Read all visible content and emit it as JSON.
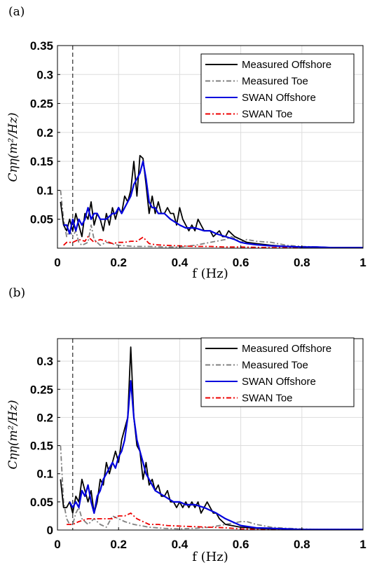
{
  "chart_data": [
    {
      "panel": "(a)",
      "type": "line",
      "xlabel": "f (Hz)",
      "ylabel": "Cηη(m²/Hz)",
      "xlim": [
        0,
        1
      ],
      "ylim": [
        0,
        0.35
      ],
      "xticks": [
        0,
        0.2,
        0.4,
        0.6,
        0.8,
        1
      ],
      "yticks": [
        0.05,
        0.1,
        0.15,
        0.2,
        0.25,
        0.3,
        0.35
      ],
      "grid": true,
      "vline": 0.05,
      "legend_position": "top-right",
      "series": [
        {
          "name": "Measured Offshore",
          "color": "#000000",
          "style": "solid",
          "x": [
            0.01,
            0.02,
            0.03,
            0.04,
            0.05,
            0.06,
            0.07,
            0.08,
            0.09,
            0.1,
            0.11,
            0.12,
            0.13,
            0.14,
            0.15,
            0.16,
            0.17,
            0.18,
            0.19,
            0.2,
            0.21,
            0.22,
            0.23,
            0.24,
            0.25,
            0.26,
            0.27,
            0.28,
            0.29,
            0.3,
            0.31,
            0.32,
            0.33,
            0.34,
            0.35,
            0.36,
            0.37,
            0.38,
            0.39,
            0.4,
            0.41,
            0.42,
            0.43,
            0.44,
            0.45,
            0.46,
            0.47,
            0.48,
            0.49,
            0.5,
            0.51,
            0.52,
            0.53,
            0.54,
            0.55,
            0.56,
            0.57,
            0.58,
            0.6,
            0.62,
            0.65,
            0.7,
            0.75,
            0.8,
            0.85,
            0.9,
            0.95,
            1.0
          ],
          "y": [
            0.08,
            0.04,
            0.03,
            0.05,
            0.03,
            0.06,
            0.04,
            0.02,
            0.06,
            0.05,
            0.08,
            0.04,
            0.06,
            0.05,
            0.03,
            0.06,
            0.04,
            0.07,
            0.05,
            0.07,
            0.06,
            0.09,
            0.08,
            0.1,
            0.15,
            0.09,
            0.16,
            0.155,
            0.11,
            0.06,
            0.09,
            0.06,
            0.08,
            0.06,
            0.06,
            0.07,
            0.06,
            0.06,
            0.04,
            0.07,
            0.05,
            0.04,
            0.03,
            0.04,
            0.03,
            0.05,
            0.04,
            0.03,
            0.03,
            0.03,
            0.02,
            0.025,
            0.03,
            0.02,
            0.02,
            0.03,
            0.025,
            0.02,
            0.015,
            0.01,
            0.008,
            0.005,
            0.003,
            0.002,
            0.002,
            0.001,
            0.001,
            0.001
          ]
        },
        {
          "name": "Measured Toe",
          "color": "#808080",
          "style": "dashdot",
          "x": [
            0.01,
            0.02,
            0.03,
            0.04,
            0.05,
            0.06,
            0.07,
            0.08,
            0.1,
            0.11,
            0.12,
            0.14,
            0.16,
            0.2,
            0.25,
            0.3,
            0.35,
            0.4,
            0.45,
            0.5,
            0.55,
            0.57,
            0.6,
            0.62,
            0.65,
            0.7,
            0.75,
            0.8,
            0.85,
            0.9,
            0.95,
            1.0
          ],
          "y": [
            0.1,
            0.05,
            0.02,
            0.03,
            0.02,
            0.03,
            0.01,
            0.005,
            0.01,
            0.04,
            0.015,
            0.005,
            0.01,
            0.005,
            0.003,
            0.003,
            0.002,
            0.002,
            0.005,
            0.01,
            0.015,
            0.02,
            0.01,
            0.015,
            0.012,
            0.01,
            0.005,
            0.003,
            0.002,
            0.001,
            0.001,
            0.001
          ]
        },
        {
          "name": "SWAN Offshore",
          "color": "#0000dd",
          "style": "solid",
          "x": [
            0.02,
            0.03,
            0.04,
            0.05,
            0.06,
            0.07,
            0.08,
            0.09,
            0.1,
            0.11,
            0.12,
            0.13,
            0.14,
            0.15,
            0.16,
            0.17,
            0.18,
            0.19,
            0.2,
            0.21,
            0.22,
            0.23,
            0.24,
            0.25,
            0.26,
            0.27,
            0.28,
            0.29,
            0.3,
            0.31,
            0.32,
            0.33,
            0.35,
            0.37,
            0.4,
            0.42,
            0.45,
            0.48,
            0.5,
            0.52,
            0.55,
            0.58,
            0.6,
            0.62,
            0.65,
            0.7,
            0.75,
            0.8,
            0.85,
            0.9,
            0.95,
            1.0
          ],
          "y": [
            0.04,
            0.04,
            0.025,
            0.05,
            0.03,
            0.05,
            0.04,
            0.05,
            0.07,
            0.05,
            0.06,
            0.06,
            0.05,
            0.05,
            0.05,
            0.055,
            0.06,
            0.06,
            0.07,
            0.06,
            0.07,
            0.08,
            0.09,
            0.11,
            0.12,
            0.13,
            0.15,
            0.12,
            0.08,
            0.07,
            0.07,
            0.06,
            0.06,
            0.05,
            0.04,
            0.035,
            0.035,
            0.03,
            0.03,
            0.025,
            0.02,
            0.015,
            0.01,
            0.008,
            0.006,
            0.004,
            0.003,
            0.002,
            0.002,
            0.001,
            0.001,
            0.001
          ]
        },
        {
          "name": "SWAN Toe",
          "color": "#ee0000",
          "style": "dashdot",
          "x": [
            0.02,
            0.03,
            0.05,
            0.07,
            0.09,
            0.1,
            0.12,
            0.14,
            0.16,
            0.18,
            0.2,
            0.22,
            0.24,
            0.26,
            0.28,
            0.3,
            0.32,
            0.35,
            0.4,
            0.45,
            0.5,
            0.55,
            0.6,
            0.7,
            0.8,
            0.9,
            1.0
          ],
          "y": [
            0.005,
            0.01,
            0.01,
            0.015,
            0.012,
            0.02,
            0.01,
            0.015,
            0.012,
            0.008,
            0.01,
            0.01,
            0.012,
            0.012,
            0.019,
            0.008,
            0.006,
            0.005,
            0.004,
            0.003,
            0.003,
            0.002,
            0.002,
            0.001,
            0.001,
            0.001,
            0.001
          ]
        }
      ]
    },
    {
      "panel": "(b)",
      "type": "line",
      "xlabel": "f (Hz)",
      "ylabel": "Cηη(m²/Hz)",
      "xlim": [
        0,
        1
      ],
      "ylim": [
        0,
        0.34
      ],
      "xticks": [
        0,
        0.2,
        0.4,
        0.6,
        0.8,
        1
      ],
      "yticks": [
        0,
        0.05,
        0.1,
        0.15,
        0.2,
        0.25,
        0.3
      ],
      "grid": true,
      "vline": 0.05,
      "legend_position": "top-right",
      "series": [
        {
          "name": "Measured Offshore",
          "color": "#000000",
          "style": "solid",
          "x": [
            0.01,
            0.02,
            0.03,
            0.04,
            0.05,
            0.06,
            0.07,
            0.08,
            0.09,
            0.1,
            0.11,
            0.12,
            0.13,
            0.14,
            0.15,
            0.16,
            0.17,
            0.18,
            0.19,
            0.2,
            0.21,
            0.22,
            0.23,
            0.24,
            0.25,
            0.26,
            0.27,
            0.28,
            0.29,
            0.3,
            0.31,
            0.32,
            0.33,
            0.34,
            0.35,
            0.36,
            0.37,
            0.38,
            0.39,
            0.4,
            0.41,
            0.42,
            0.43,
            0.44,
            0.45,
            0.46,
            0.47,
            0.48,
            0.49,
            0.5,
            0.51,
            0.52,
            0.53,
            0.55,
            0.6,
            0.65,
            0.7,
            0.75,
            0.8,
            0.85,
            0.9,
            0.95,
            1.0
          ],
          "y": [
            0.09,
            0.04,
            0.04,
            0.05,
            0.03,
            0.06,
            0.05,
            0.09,
            0.07,
            0.05,
            0.07,
            0.03,
            0.05,
            0.09,
            0.08,
            0.12,
            0.1,
            0.12,
            0.14,
            0.12,
            0.16,
            0.18,
            0.2,
            0.325,
            0.2,
            0.15,
            0.14,
            0.09,
            0.12,
            0.08,
            0.09,
            0.07,
            0.08,
            0.06,
            0.06,
            0.07,
            0.05,
            0.05,
            0.04,
            0.05,
            0.04,
            0.05,
            0.04,
            0.05,
            0.04,
            0.05,
            0.03,
            0.04,
            0.05,
            0.04,
            0.03,
            0.03,
            0.02,
            0.01,
            0.005,
            0.003,
            0.002,
            0.002,
            0.001,
            0.001,
            0.001,
            0.001,
            0.001
          ]
        },
        {
          "name": "Measured Toe",
          "color": "#808080",
          "style": "dashdot",
          "x": [
            0.01,
            0.02,
            0.03,
            0.04,
            0.05,
            0.06,
            0.07,
            0.08,
            0.1,
            0.12,
            0.14,
            0.16,
            0.18,
            0.2,
            0.22,
            0.25,
            0.3,
            0.35,
            0.4,
            0.45,
            0.5,
            0.55,
            0.6,
            0.62,
            0.65,
            0.7,
            0.75,
            0.8,
            0.85,
            0.9,
            0.95,
            1.0
          ],
          "y": [
            0.15,
            0.05,
            0.02,
            0.01,
            0.01,
            0.03,
            0.04,
            0.02,
            0.01,
            0.02,
            0.01,
            0.005,
            0.025,
            0.02,
            0.015,
            0.01,
            0.005,
            0.003,
            0.002,
            0.003,
            0.005,
            0.01,
            0.015,
            0.015,
            0.01,
            0.005,
            0.003,
            0.002,
            0.001,
            0.001,
            0.001,
            0.001
          ]
        },
        {
          "name": "SWAN Offshore",
          "color": "#0000dd",
          "style": "solid",
          "x": [
            0.04,
            0.05,
            0.06,
            0.07,
            0.08,
            0.09,
            0.1,
            0.11,
            0.12,
            0.13,
            0.14,
            0.15,
            0.16,
            0.17,
            0.18,
            0.19,
            0.2,
            0.21,
            0.22,
            0.23,
            0.24,
            0.25,
            0.26,
            0.27,
            0.28,
            0.29,
            0.3,
            0.32,
            0.35,
            0.38,
            0.4,
            0.42,
            0.45,
            0.48,
            0.5,
            0.52,
            0.55,
            0.6,
            0.65,
            0.7,
            0.75,
            0.8,
            0.85,
            0.9,
            0.95,
            1.0
          ],
          "y": [
            0.05,
            0.04,
            0.05,
            0.04,
            0.07,
            0.06,
            0.08,
            0.05,
            0.03,
            0.06,
            0.07,
            0.09,
            0.1,
            0.11,
            0.12,
            0.11,
            0.13,
            0.14,
            0.16,
            0.2,
            0.265,
            0.2,
            0.16,
            0.14,
            0.12,
            0.1,
            0.09,
            0.07,
            0.06,
            0.05,
            0.05,
            0.045,
            0.045,
            0.04,
            0.035,
            0.03,
            0.02,
            0.008,
            0.004,
            0.003,
            0.002,
            0.001,
            0.001,
            0.001,
            0.001,
            0.001
          ]
        },
        {
          "name": "SWAN Toe",
          "color": "#ee0000",
          "style": "dashdot",
          "x": [
            0.03,
            0.05,
            0.07,
            0.1,
            0.12,
            0.15,
            0.18,
            0.2,
            0.22,
            0.24,
            0.26,
            0.28,
            0.3,
            0.33,
            0.36,
            0.4,
            0.45,
            0.5,
            0.55,
            0.6,
            0.7,
            0.8,
            0.9,
            1.0
          ],
          "y": [
            0.01,
            0.01,
            0.015,
            0.02,
            0.02,
            0.02,
            0.02,
            0.025,
            0.025,
            0.03,
            0.02,
            0.015,
            0.01,
            0.01,
            0.008,
            0.007,
            0.006,
            0.005,
            0.004,
            0.002,
            0.001,
            0.001,
            0.001,
            0.001
          ]
        }
      ]
    }
  ]
}
